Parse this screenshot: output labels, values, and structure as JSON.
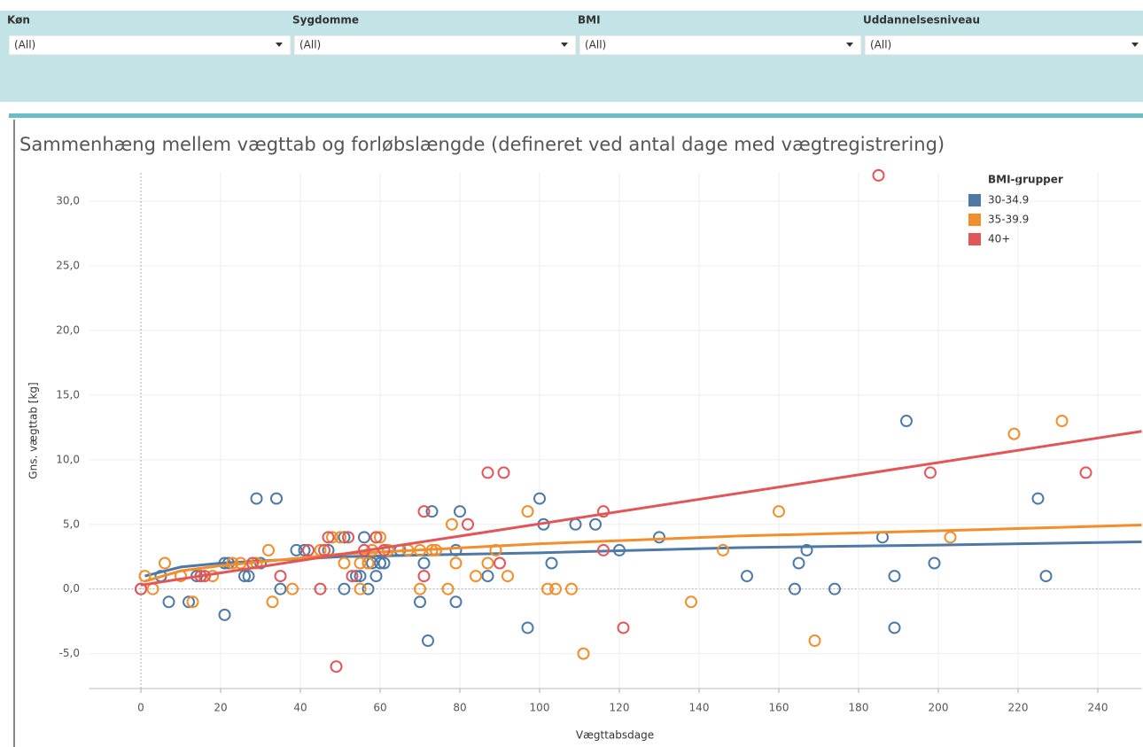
{
  "filters": [
    {
      "label": "Køn",
      "value": "(All)"
    },
    {
      "label": "Sygdomme",
      "value": "(All)"
    },
    {
      "label": "BMI",
      "value": "(All)"
    },
    {
      "label": "Uddannelsesniveau",
      "value": "(All)"
    }
  ],
  "chart_data": {
    "type": "scatter",
    "title": "Sammenhæng mellem vægttab og forløbslængde (defineret ved antal dage med vægtregistrering)",
    "x_label": "Vægttabsdage",
    "y_label": "Gns. vægttab [kg]",
    "legend_title": "BMI-grupper",
    "legend_position": "top-right",
    "xlim": [
      -13,
      251
    ],
    "xticks": [
      0,
      20,
      40,
      60,
      80,
      100,
      120,
      140,
      160,
      180,
      200,
      220,
      240
    ],
    "ylim": [
      -7.7,
      32.2
    ],
    "yticks": [
      {
        "value": -5,
        "label": "-5,0"
      },
      {
        "value": 0,
        "label": "0,0"
      },
      {
        "value": 5,
        "label": "5,0"
      },
      {
        "value": 10,
        "label": "10,0"
      },
      {
        "value": 15,
        "label": "15,0"
      },
      {
        "value": 20,
        "label": "20,0"
      },
      {
        "value": 25,
        "label": "25,0"
      },
      {
        "value": 30,
        "label": "30,0"
      }
    ],
    "grid": true,
    "series": [
      {
        "name": "30-34.9",
        "color": "#4e79a7",
        "x": [
          0,
          5,
          7,
          12,
          14,
          15,
          21,
          21,
          22,
          26,
          27,
          29,
          34,
          30,
          35,
          39,
          41,
          47,
          51,
          51,
          54,
          55,
          56,
          57,
          57,
          58,
          59,
          60,
          61,
          62,
          65,
          70,
          71,
          72,
          73,
          79,
          79,
          80,
          87,
          97,
          100,
          101,
          103,
          109,
          114,
          120,
          130,
          152,
          164,
          165,
          167,
          174,
          186,
          189,
          189,
          192,
          199,
          225,
          227
        ],
        "values": [
          0,
          1,
          -1,
          -1,
          1,
          1,
          -2,
          2,
          2,
          1,
          1,
          7,
          7,
          2,
          0,
          3,
          3,
          3,
          4,
          0,
          1,
          1,
          4,
          0,
          2,
          2,
          1,
          2,
          2,
          3,
          3,
          -1,
          2,
          -4,
          6,
          -1,
          3,
          6,
          1,
          -3,
          7,
          5,
          2,
          5,
          5,
          3,
          4,
          1,
          0,
          2,
          3,
          0,
          4,
          1,
          -3,
          13,
          2,
          7,
          1
        ],
        "trend": {
          "x": [
            1,
            10,
            20,
            50,
            100,
            150,
            200,
            251
          ],
          "values": [
            1.0,
            1.7,
            2.0,
            2.5,
            2.8,
            3.2,
            3.4,
            3.65
          ]
        }
      },
      {
        "name": "35-39.9",
        "color": "#f28e2b",
        "x": [
          1,
          3,
          6,
          10,
          13,
          18,
          23,
          25,
          29,
          32,
          33,
          38,
          45,
          48,
          50,
          51,
          55,
          55,
          57,
          58,
          59,
          60,
          62,
          67,
          70,
          70,
          73,
          74,
          77,
          78,
          79,
          84,
          87,
          89,
          92,
          97,
          102,
          104,
          108,
          111,
          138,
          146,
          160,
          169,
          203,
          219,
          231
        ],
        "values": [
          1,
          0,
          2,
          1,
          -1,
          1,
          2,
          2,
          2,
          3,
          -1,
          0,
          3,
          4,
          4,
          2,
          0,
          2,
          2,
          3,
          4,
          4,
          3,
          3,
          0,
          3,
          3,
          3,
          0,
          5,
          2,
          1,
          2,
          3,
          1,
          6,
          0,
          0,
          0,
          -5,
          -1,
          3,
          6,
          -4,
          4,
          12,
          13
        ],
        "trend": {
          "x": [
            1,
            10,
            20,
            50,
            100,
            150,
            200,
            251
          ],
          "values": [
            0.6,
            1.4,
            1.8,
            2.7,
            3.5,
            4.1,
            4.5,
            4.95
          ]
        }
      },
      {
        "name": "40+",
        "color": "#e15759",
        "x": [
          0,
          15,
          16,
          28,
          35,
          42,
          45,
          46,
          47,
          49,
          52,
          53,
          56,
          59,
          61,
          71,
          71,
          82,
          87,
          90,
          91,
          116,
          116,
          121,
          185,
          198,
          237
        ],
        "values": [
          0,
          1,
          1,
          2,
          1,
          3,
          0,
          3,
          4,
          -6,
          4,
          1,
          3,
          4,
          3,
          6,
          1,
          5,
          9,
          2,
          9,
          6,
          3,
          -3,
          32,
          9,
          9
        ],
        "trend": {
          "x": [
            0,
            251
          ],
          "values": [
            0.3,
            12.2
          ]
        }
      }
    ]
  }
}
